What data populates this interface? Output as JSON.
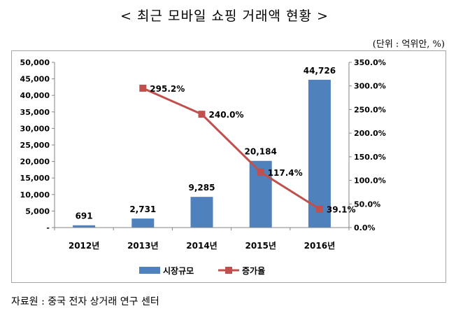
{
  "page": {
    "title": "< 최근 모바일 쇼핑 거래액 현황 >",
    "unit": "(단위 : 억위안, %)",
    "source": "자료원 : 중국 전자 상거래 연구 센터"
  },
  "chart_data": {
    "type": "bar",
    "title": "최근 모바일 쇼핑 거래액 현황",
    "categories": [
      "2012년",
      "2013년",
      "2014년",
      "2015년",
      "2016년"
    ],
    "series": [
      {
        "name": "시장규모",
        "type": "bar",
        "axis": "left",
        "values": [
          691,
          2731,
          9285,
          20184,
          44726
        ],
        "labels": [
          "691",
          "2,731",
          "9,285",
          "20,184",
          "44,726"
        ],
        "color": "#4f81bd"
      },
      {
        "name": "증가율",
        "type": "line",
        "axis": "right",
        "values": [
          null,
          295.2,
          240.0,
          117.4,
          39.1
        ],
        "labels": [
          null,
          "295.2%",
          "240.0%",
          "117.4%",
          "39.1%"
        ],
        "color": "#c0504d"
      }
    ],
    "yleft": {
      "lim": [
        0,
        50000
      ],
      "ticks": [
        0,
        5000,
        10000,
        15000,
        20000,
        25000,
        30000,
        35000,
        40000,
        45000,
        50000
      ],
      "tick_labels": [
        "-",
        "5,000",
        "10,000",
        "15,000",
        "20,000",
        "25,000",
        "30,000",
        "35,000",
        "40,000",
        "45,000",
        "50,000"
      ]
    },
    "yright": {
      "lim": [
        0,
        350
      ],
      "ticks": [
        0,
        50,
        100,
        150,
        200,
        250,
        300,
        350
      ],
      "tick_labels": [
        "0.0%",
        "50.0%",
        "100.0%",
        "150.0%",
        "200.0%",
        "250.0%",
        "300.0%",
        "350.0%"
      ]
    },
    "legend": {
      "position": "bottom",
      "entries": [
        "시장규모",
        "증가율"
      ]
    },
    "grid": false,
    "colors": {
      "bar": "#4f81bd",
      "line": "#c0504d",
      "axis": "#868686"
    }
  }
}
